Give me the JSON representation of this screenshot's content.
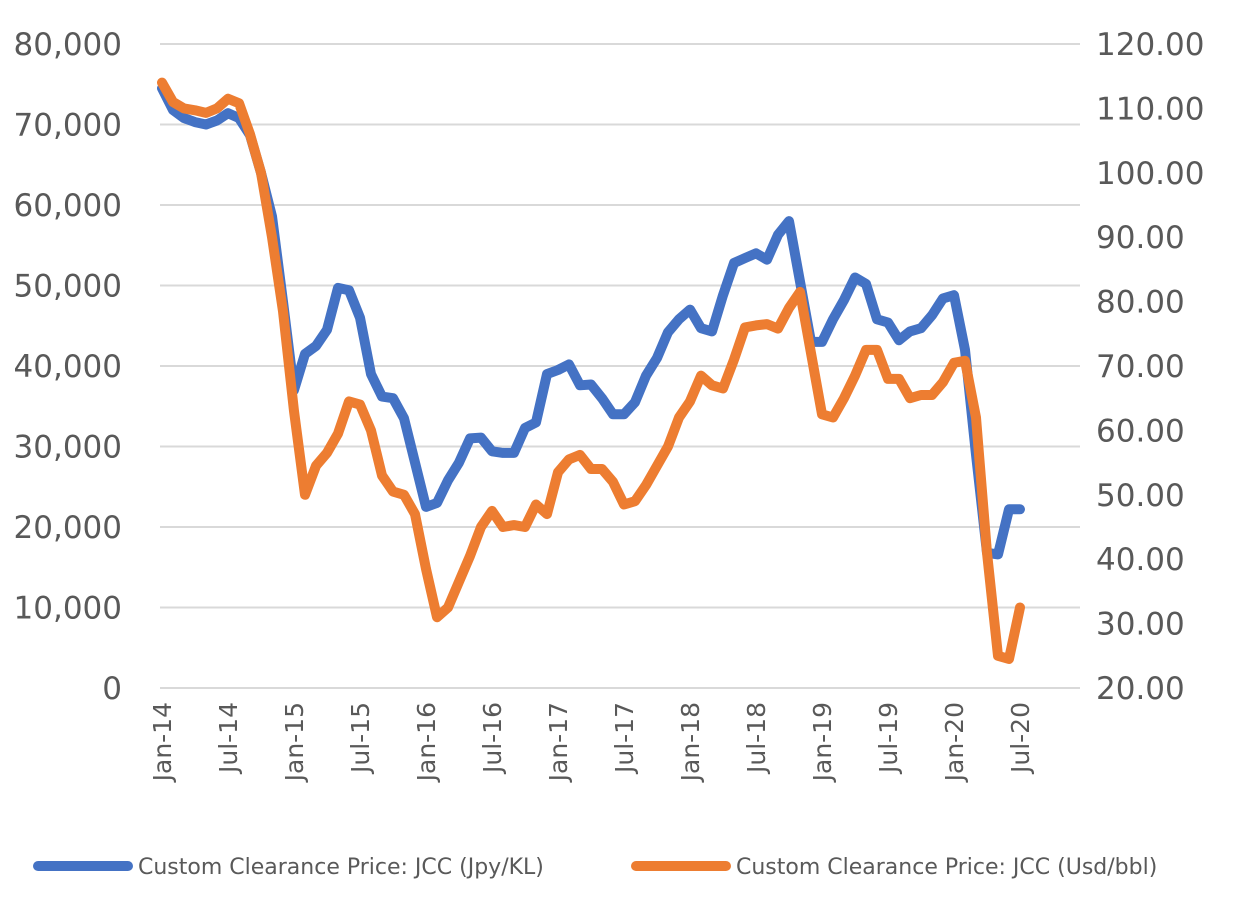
{
  "chart_data": {
    "type": "line",
    "title": "",
    "grid": true,
    "legend_position": "bottom",
    "x": [
      "Jan-14",
      "Feb-14",
      "Mar-14",
      "Apr-14",
      "May-14",
      "Jun-14",
      "Jul-14",
      "Aug-14",
      "Sep-14",
      "Oct-14",
      "Nov-14",
      "Dec-14",
      "Jan-15",
      "Feb-15",
      "Mar-15",
      "Apr-15",
      "May-15",
      "Jun-15",
      "Jul-15",
      "Aug-15",
      "Sep-15",
      "Oct-15",
      "Nov-15",
      "Dec-15",
      "Jan-16",
      "Feb-16",
      "Mar-16",
      "Apr-16",
      "May-16",
      "Jun-16",
      "Jul-16",
      "Aug-16",
      "Sep-16",
      "Oct-16",
      "Nov-16",
      "Dec-16",
      "Jan-17",
      "Feb-17",
      "Mar-17",
      "Apr-17",
      "May-17",
      "Jun-17",
      "Jul-17",
      "Aug-17",
      "Sep-17",
      "Oct-17",
      "Nov-17",
      "Dec-17",
      "Jan-18",
      "Feb-18",
      "Mar-18",
      "Apr-18",
      "May-18",
      "Jun-18",
      "Jul-18",
      "Aug-18",
      "Sep-18",
      "Oct-18",
      "Nov-18",
      "Dec-18",
      "Jan-19",
      "Feb-19",
      "Mar-19",
      "Apr-19",
      "May-19",
      "Jun-19",
      "Jul-19",
      "Aug-19",
      "Sep-19",
      "Oct-19",
      "Nov-19",
      "Dec-19",
      "Jan-20",
      "Feb-20",
      "Mar-20",
      "Apr-20",
      "May-20",
      "Jun-20",
      "Jul-20"
    ],
    "x_tick_labels": [
      "Jan-14",
      "Jul-14",
      "Jan-15",
      "Jul-15",
      "Jan-16",
      "Jul-16",
      "Jan-17",
      "Jul-17",
      "Jan-18",
      "Jul-18",
      "Jan-19",
      "Jul-19",
      "Jan-20",
      "Jul-20"
    ],
    "y_left": {
      "ylim": [
        0,
        80000
      ],
      "ticks": [
        "0",
        "10,000",
        "20,000",
        "30,000",
        "40,000",
        "50,000",
        "60,000",
        "70,000",
        "80,000"
      ]
    },
    "y_right": {
      "ylim": [
        20,
        120
      ],
      "ticks": [
        "20.00",
        "30.00",
        "40.00",
        "50.00",
        "60.00",
        "70.00",
        "80.00",
        "90.00",
        "100.00",
        "110.00",
        "120.00"
      ]
    },
    "series": [
      {
        "name": "Custom Clearance Price: JCC (Jpy/KL)",
        "axis": "left",
        "color": "#4472C4",
        "values": [
          74500,
          71800,
          70800,
          70300,
          70000,
          70500,
          71400,
          70800,
          68700,
          64000,
          58600,
          48000,
          37000,
          41500,
          42500,
          44500,
          49700,
          49400,
          46000,
          39000,
          36200,
          36000,
          33500,
          28000,
          22500,
          23000,
          25800,
          28000,
          31000,
          31100,
          29400,
          29200,
          29200,
          32300,
          33000,
          39000,
          39500,
          40200,
          37600,
          37700,
          36000,
          34000,
          34000,
          35500,
          38800,
          41000,
          44200,
          45800,
          47000,
          44700,
          44300,
          48800,
          52800,
          53400,
          54000,
          53200,
          56300,
          58000,
          50500,
          43000,
          43000,
          45800,
          48200,
          51000,
          50200,
          45800,
          45400,
          43200,
          44300,
          44700,
          46300,
          48400,
          48800,
          42000,
          29000,
          16800,
          16600,
          22200,
          22200
        ]
      },
      {
        "name": "Custom Clearance Price: JCC (Usd/bbl)",
        "axis": "right",
        "color": "#ED7D31",
        "values": [
          114,
          111,
          110,
          109.7,
          109.3,
          110,
          111.5,
          110.8,
          106,
          100,
          90,
          78.5,
          63,
          50,
          54.5,
          56.5,
          59.5,
          64.5,
          64,
          60,
          53,
          50.5,
          50,
          47,
          38.5,
          31,
          32.5,
          36.5,
          40.5,
          45,
          47.5,
          45,
          45.3,
          45,
          48.5,
          47,
          53.5,
          55.5,
          56.2,
          54,
          54,
          52,
          48.5,
          49,
          51.5,
          54.5,
          57.5,
          62,
          64.5,
          68.5,
          67,
          66.5,
          71,
          76,
          76.3,
          76.5,
          75.8,
          79,
          81.5,
          72,
          62.5,
          62,
          65,
          68.5,
          72.5,
          72.5,
          68,
          68,
          65,
          65.5,
          65.5,
          67.5,
          70.5,
          70.8,
          62,
          41,
          25,
          24.5,
          32.5
        ]
      }
    ]
  }
}
